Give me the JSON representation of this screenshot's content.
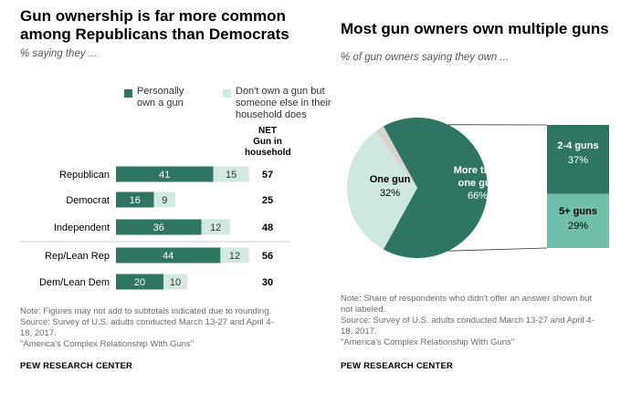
{
  "colors": {
    "dark_green": "#2e7563",
    "light_green": "#d2e9e0",
    "mid_green": "#6fbfaa",
    "pie_light": "#cfe7e1",
    "pie_grey": "#d9d4c7"
  },
  "left": {
    "title_line1": "Gun ownership is far more common",
    "title_line2": "among Republicans than Democrats",
    "subtitle": "% saying they ...",
    "legend": [
      {
        "lines": [
          "Personally",
          "own a gun"
        ]
      },
      {
        "lines": [
          "Don't own a gun but",
          "someone else in their",
          "household does"
        ]
      }
    ],
    "net_header": [
      "NET",
      "Gun in",
      "household"
    ],
    "note": "Note: Figures may not add to subtotals indicated due to rounding.",
    "source1": "Source: Survey of U.S. adults conducted March 13-27 and April 4-",
    "source2": "18, 2017.",
    "report": "\"America's Complex Relationship With Guns\"",
    "org": "PEW RESEARCH CENTER"
  },
  "right": {
    "title": "Most gun owners own multiple guns",
    "subtitle": "% of gun owners saying they own ...",
    "pie_labels": {
      "one_gun": "One gun",
      "one_gun_val": "32%",
      "multi_line1": "More than",
      "multi_line2": "one gun",
      "multi_val": "66%"
    },
    "breakout_labels": {
      "two_four": "2-4 guns",
      "two_four_val": "37%",
      "five_plus": "5+ guns",
      "five_plus_val": "29%"
    },
    "note1": "Note: Share of respondents who didn't offer an answer shown but",
    "note2": "not labeled.",
    "source1": "Source: Survey of U.S. adults conducted March 13-27 and April 4-",
    "source2": "18, 2017.",
    "report": "\"America's Complex Relationship With Guns\"",
    "org": "PEW RESEARCH CENTER"
  },
  "chart_data": [
    {
      "type": "bar",
      "stacked": true,
      "orientation": "horizontal",
      "title": "Gun ownership is far more common among Republicans than Democrats",
      "subtitle": "% saying they ...",
      "categories": [
        "Republican",
        "Democrat",
        "Independent",
        "Rep/Lean Rep",
        "Dem/Lean Dem"
      ],
      "series": [
        {
          "name": "Personally own a gun",
          "values": [
            41,
            16,
            36,
            44,
            20
          ]
        },
        {
          "name": "Don't own a gun but someone else in their household does",
          "values": [
            15,
            9,
            12,
            12,
            10
          ]
        }
      ],
      "net": {
        "name": "NET Gun in household",
        "values": [
          57,
          25,
          48,
          56,
          30
        ]
      },
      "legend": "top"
    },
    {
      "type": "pie",
      "title": "Most gun owners own multiple guns",
      "subtitle": "% of gun owners saying they own ...",
      "slices": [
        {
          "label": "More than one gun",
          "value": 66
        },
        {
          "label": "One gun",
          "value": 32
        },
        {
          "label": "",
          "value": 2
        }
      ],
      "breakout": {
        "of": "More than one gun",
        "segments": [
          {
            "label": "2-4 guns",
            "value": 37
          },
          {
            "label": "5+ guns",
            "value": 29
          }
        ]
      }
    }
  ]
}
